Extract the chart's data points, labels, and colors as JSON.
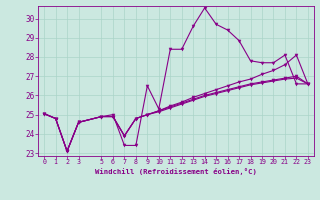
{
  "xlabel": "Windchill (Refroidissement éolien,°C)",
  "background_color": "#cbe8e0",
  "line_color": "#880088",
  "grid_color": "#aad4c8",
  "xlim": [
    -0.5,
    23.5
  ],
  "ylim": [
    22.85,
    30.65
  ],
  "xticks": [
    0,
    1,
    2,
    3,
    5,
    6,
    7,
    8,
    9,
    10,
    11,
    12,
    13,
    14,
    15,
    16,
    17,
    18,
    19,
    20,
    21,
    22,
    23
  ],
  "yticks": [
    23,
    24,
    25,
    26,
    27,
    28,
    29,
    30
  ],
  "series": [
    {
      "x": [
        0,
        1,
        2,
        3,
        5,
        6,
        7,
        8,
        9,
        10,
        11,
        12,
        13,
        14,
        15,
        16,
        17,
        18,
        19,
        20,
        21,
        22,
        23
      ],
      "y": [
        25.05,
        24.8,
        23.1,
        24.6,
        24.9,
        25.0,
        23.4,
        23.4,
        26.5,
        25.3,
        28.4,
        28.4,
        29.6,
        30.55,
        29.7,
        29.4,
        28.85,
        27.8,
        27.7,
        27.7,
        28.1,
        26.6,
        26.6
      ]
    },
    {
      "x": [
        0,
        1,
        2,
        3,
        5,
        6,
        7,
        8,
        9,
        10,
        11,
        12,
        13,
        14,
        15,
        16,
        17,
        18,
        19,
        20,
        21,
        22,
        23
      ],
      "y": [
        25.05,
        24.8,
        23.1,
        24.6,
        24.9,
        24.9,
        23.9,
        24.8,
        25.0,
        25.15,
        25.35,
        25.55,
        25.75,
        25.95,
        26.1,
        26.25,
        26.4,
        26.55,
        26.65,
        26.75,
        26.85,
        26.9,
        26.6
      ]
    },
    {
      "x": [
        0,
        1,
        2,
        3,
        5,
        6,
        7,
        8,
        9,
        10,
        11,
        12,
        13,
        14,
        15,
        16,
        17,
        18,
        19,
        20,
        21,
        22,
        23
      ],
      "y": [
        25.05,
        24.8,
        23.1,
        24.6,
        24.9,
        24.9,
        23.9,
        24.8,
        25.0,
        25.2,
        25.4,
        25.6,
        25.8,
        26.0,
        26.15,
        26.3,
        26.45,
        26.6,
        26.7,
        26.8,
        26.9,
        27.0,
        26.6
      ]
    },
    {
      "x": [
        0,
        1,
        2,
        3,
        5,
        6,
        7,
        8,
        9,
        10,
        11,
        12,
        13,
        14,
        15,
        16,
        17,
        18,
        19,
        20,
        21,
        22,
        23
      ],
      "y": [
        25.05,
        24.8,
        23.1,
        24.6,
        24.9,
        24.9,
        23.9,
        24.8,
        25.0,
        25.2,
        25.45,
        25.65,
        25.9,
        26.1,
        26.3,
        26.5,
        26.7,
        26.85,
        27.1,
        27.3,
        27.6,
        28.1,
        26.6
      ]
    }
  ]
}
